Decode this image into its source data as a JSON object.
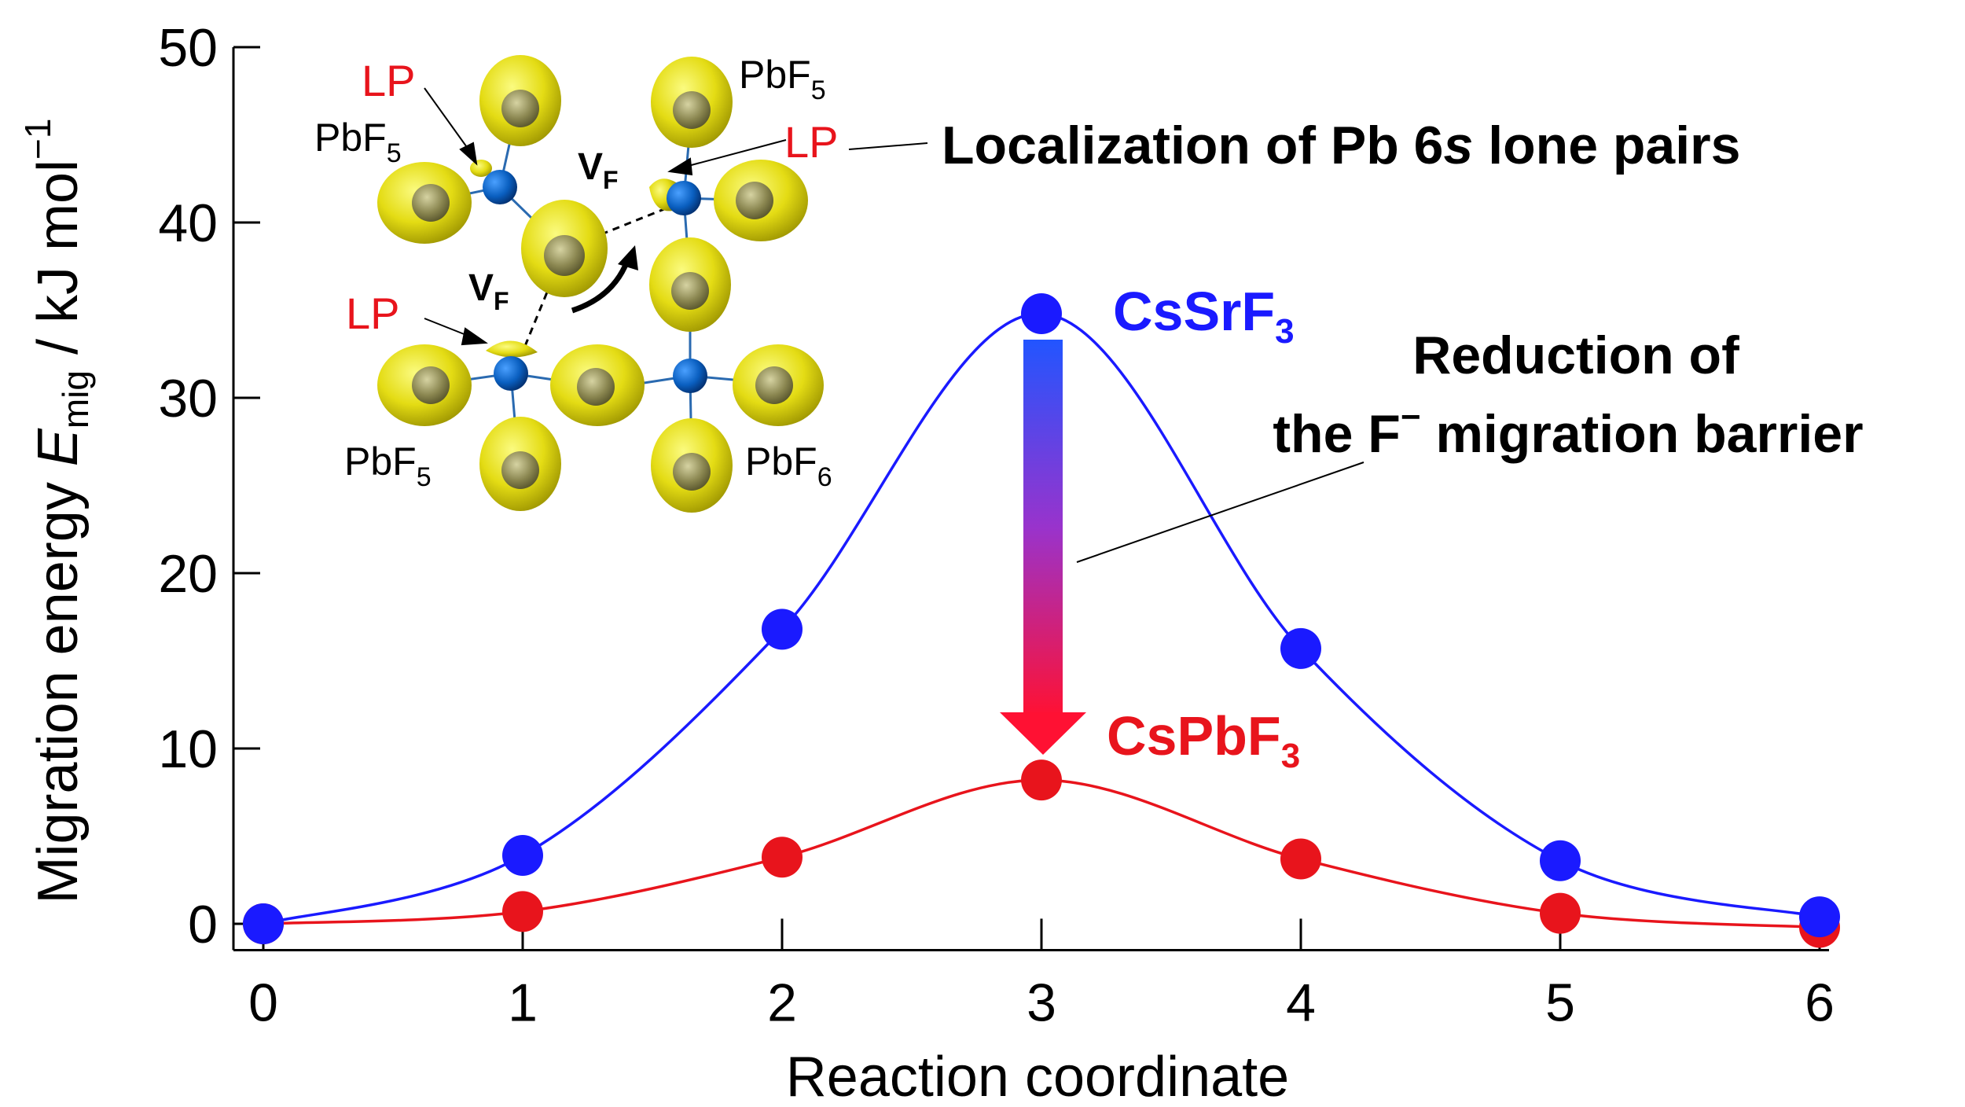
{
  "chart_data": {
    "type": "line",
    "xlabel": "Reaction coordinate",
    "ylabel": {
      "prefix": "Migration energy ",
      "symbol": "E",
      "subscript": "mig",
      "unit_text": " / kJ mol",
      "unit_superscript": "−1"
    },
    "xlim": [
      0,
      6
    ],
    "ylim": [
      -1.5,
      50
    ],
    "x_ticks": [
      0,
      1,
      2,
      3,
      4,
      5,
      6
    ],
    "y_ticks": [
      0,
      10,
      20,
      30,
      40,
      50
    ],
    "grid": false,
    "series": [
      {
        "name": "CsSrF",
        "name_subscript": "3",
        "color": "#1a1aff",
        "x": [
          0,
          1,
          2,
          3,
          4,
          5,
          6
        ],
        "y": [
          0,
          3.9,
          16.8,
          34.8,
          15.7,
          3.6,
          0.4
        ]
      },
      {
        "name": "CsPbF",
        "name_subscript": "3",
        "color": "#e8141c",
        "x": [
          0,
          1,
          2,
          3,
          4,
          5,
          6
        ],
        "y": [
          0,
          0.7,
          3.8,
          8.2,
          3.7,
          0.6,
          -0.2
        ]
      }
    ],
    "annotations": {
      "barrier_line1": "Reduction of",
      "barrier_line2": "the F",
      "barrier_sup": "−",
      "barrier_line2_rest": " migration barrier",
      "localization": "Localization of Pb 6",
      "localization_italic": "s",
      "localization_rest": " lone pairs"
    },
    "inset": {
      "lp": "LP",
      "vf": "V",
      "vf_sub": "F",
      "pbf": "PbF",
      "sub5": "5",
      "sub6": "6"
    }
  }
}
